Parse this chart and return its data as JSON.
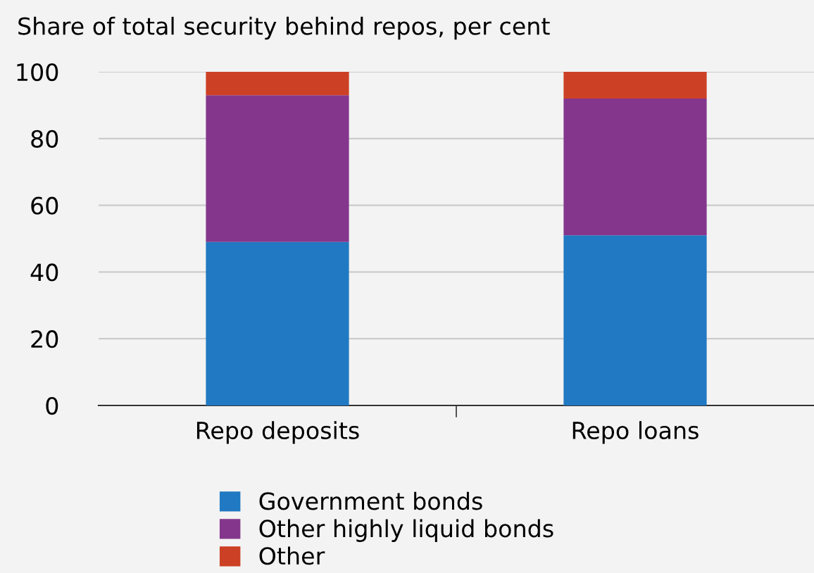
{
  "chart_data": {
    "type": "bar",
    "title": "Share of total security behind repos, per cent",
    "categories": [
      "Repo deposits",
      "Repo loans"
    ],
    "stacked": true,
    "series": [
      {
        "name": "Government bonds",
        "color": "#2079c2",
        "values": [
          49,
          51
        ]
      },
      {
        "name": "Other highly liquid bonds",
        "color": "#84368c",
        "values": [
          44,
          41
        ]
      },
      {
        "name": "Other",
        "color": "#cc4125",
        "values": [
          7,
          8
        ]
      }
    ],
    "ylim": [
      0,
      100
    ],
    "yticks": [
      0,
      20,
      40,
      60,
      80,
      100
    ],
    "grid": "y",
    "legend": "bottom"
  }
}
